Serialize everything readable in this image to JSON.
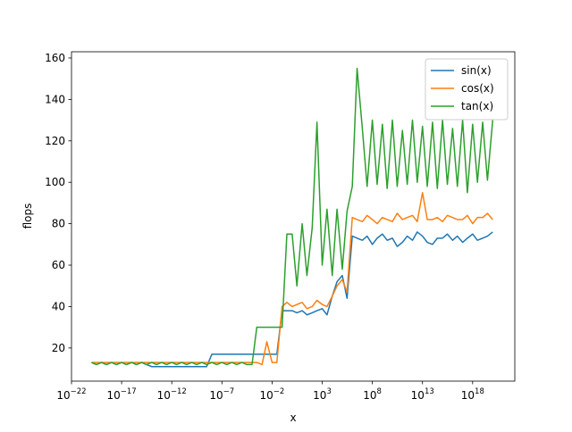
{
  "chart_data": {
    "type": "line",
    "xlabel": "x",
    "ylabel": "flops",
    "xscale": "log",
    "legend": "upper right",
    "x": [
      1e-20,
      3e-20,
      1e-19,
      3e-19,
      1e-18,
      3e-18,
      1e-17,
      3e-17,
      1e-16,
      3e-16,
      1e-15,
      3e-15,
      1e-14,
      3e-14,
      1e-13,
      3e-13,
      1e-12,
      3e-12,
      1e-11,
      3e-11,
      1e-10,
      3e-10,
      1e-09,
      3e-09,
      1e-08,
      3e-08,
      1e-07,
      3e-07,
      1e-06,
      3e-06,
      1e-05,
      3e-05,
      0.0001,
      0.0003,
      0.001,
      0.003,
      0.01,
      0.03,
      0.1,
      0.3,
      1,
      3,
      10,
      30,
      100,
      300,
      1000.0,
      3000.0,
      10000.0,
      30000.0,
      100000.0,
      300000.0,
      1000000.0,
      3000000.0,
      10000000.0,
      30000000.0,
      100000000.0,
      300000000.0,
      1000000000.0,
      3000000000.0,
      10000000000.0,
      30000000000.0,
      100000000000.0,
      300000000000.0,
      1000000000000.0,
      3000000000000.0,
      10000000000000.0,
      30000000000000.0,
      100000000000000.0,
      300000000000000.0,
      1000000000000000.0,
      3000000000000000.0,
      1e+16,
      3e+16,
      1e+17,
      3e+17,
      1e+18,
      3e+18,
      1e+19,
      3e+19,
      1e+20
    ],
    "series": [
      {
        "name": "sin(x)",
        "color": "#1f77b4",
        "values": [
          13,
          12,
          13,
          12,
          13,
          12,
          13,
          12,
          13,
          12,
          13,
          12,
          11,
          11,
          11,
          11,
          11,
          11,
          11,
          11,
          11,
          11,
          11,
          11,
          17,
          17,
          17,
          17,
          17,
          17,
          17,
          17,
          17,
          17,
          17,
          17,
          17,
          17,
          38,
          38,
          38,
          37,
          38,
          36,
          37,
          38,
          39,
          36,
          45,
          52,
          55,
          44,
          74,
          73,
          72,
          74,
          70,
          73,
          75,
          72,
          73,
          69,
          71,
          74,
          72,
          76,
          74,
          71,
          70,
          73,
          73,
          75,
          72,
          74,
          71,
          73,
          75,
          72,
          73,
          74,
          76
        ]
      },
      {
        "name": "cos(x)",
        "color": "#ff7f0e",
        "values": [
          13,
          13,
          13,
          13,
          13,
          13,
          13,
          13,
          13,
          13,
          13,
          13,
          13,
          13,
          13,
          13,
          13,
          13,
          13,
          13,
          13,
          13,
          13,
          13,
          13,
          13,
          13,
          13,
          13,
          13,
          13,
          13,
          13,
          13,
          12,
          23,
          13,
          13,
          40,
          42,
          40,
          41,
          42,
          39,
          40,
          43,
          41,
          40,
          45,
          50,
          53,
          47,
          83,
          82,
          81,
          84,
          82,
          80,
          83,
          82,
          81,
          85,
          82,
          83,
          84,
          81,
          95,
          82,
          82,
          83,
          81,
          84,
          83,
          82,
          82,
          84,
          80,
          83,
          83,
          85,
          82
        ]
      },
      {
        "name": "tan(x)",
        "color": "#2ca02c",
        "values": [
          13,
          12,
          13,
          12,
          13,
          12,
          13,
          12,
          13,
          12,
          13,
          12,
          13,
          12,
          13,
          12,
          13,
          12,
          13,
          12,
          13,
          12,
          13,
          12,
          13,
          12,
          13,
          12,
          13,
          12,
          13,
          12,
          12,
          30,
          30,
          30,
          30,
          30,
          30,
          75,
          75,
          50,
          80,
          55,
          78,
          129,
          60,
          87,
          55,
          87,
          58,
          86,
          98,
          155,
          126,
          98,
          130,
          99,
          128,
          97,
          130,
          98,
          125,
          99,
          130,
          100,
          127,
          98,
          129,
          97,
          130,
          99,
          126,
          98,
          130,
          95,
          128,
          100,
          129,
          101,
          130
        ]
      }
    ],
    "xlim": [
      1e-22,
      1.6e+22
    ],
    "xticks": [
      {
        "value": 1e-22,
        "label": "10−22"
      },
      {
        "value": 1e-17,
        "label": "10−17"
      },
      {
        "value": 1e-12,
        "label": "10−12"
      },
      {
        "value": 1e-07,
        "label": "10−7"
      },
      {
        "value": 0.01,
        "label": "10−2"
      },
      {
        "value": 1000,
        "label": "103"
      },
      {
        "value": 100000000.0,
        "label": "108"
      },
      {
        "value": 10000000000000.0,
        "label": "1013"
      },
      {
        "value": 1e+18,
        "label": "1018"
      }
    ],
    "ylim": [
      4,
      163
    ],
    "yticks": [
      20,
      40,
      60,
      80,
      100,
      120,
      140,
      160
    ]
  }
}
